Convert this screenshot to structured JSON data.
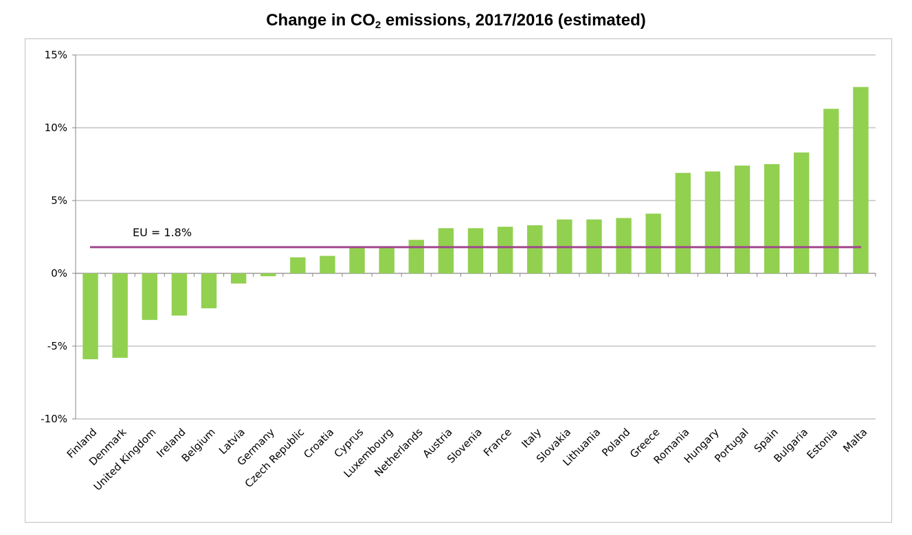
{
  "chart_data": {
    "type": "bar",
    "title_main": "Change in CO",
    "title_sub": "2",
    "title_rest": " emissions, 2017/2016 (estimated)",
    "categories": [
      "Finland",
      "Denmark",
      "United Kingdom",
      "Ireland",
      "Belgium",
      "Latvia",
      "Germany",
      "Czech Republic",
      "Croatia",
      "Cyprus",
      "Luxembourg",
      "Netherlands",
      "Austria",
      "Slovenia",
      "France",
      "Italy",
      "Slovakia",
      "Lithuania",
      "Poland",
      "Greece",
      "Romania",
      "Hungary",
      "Portugal",
      "Spain",
      "Bulgaria",
      "Estonia",
      "Malta"
    ],
    "values": [
      -5.9,
      -5.8,
      -3.2,
      -2.9,
      -2.4,
      -0.7,
      -0.2,
      1.1,
      1.2,
      1.8,
      1.8,
      2.3,
      3.1,
      3.1,
      3.2,
      3.3,
      3.7,
      3.7,
      3.8,
      4.1,
      6.9,
      7.0,
      7.4,
      7.5,
      8.3,
      11.3,
      12.8
    ],
    "ylim": [
      -10,
      15
    ],
    "yticks": [
      15,
      10,
      5,
      0,
      -5,
      -10
    ],
    "ytick_labels": [
      "15%",
      "10%",
      "5%",
      "0%",
      "-5%",
      "-10%"
    ],
    "grid": true,
    "bar_color": "#92d050",
    "reference_line": {
      "value": 1.8,
      "label": "EU = 1.8%",
      "color": "#a0468c"
    }
  }
}
